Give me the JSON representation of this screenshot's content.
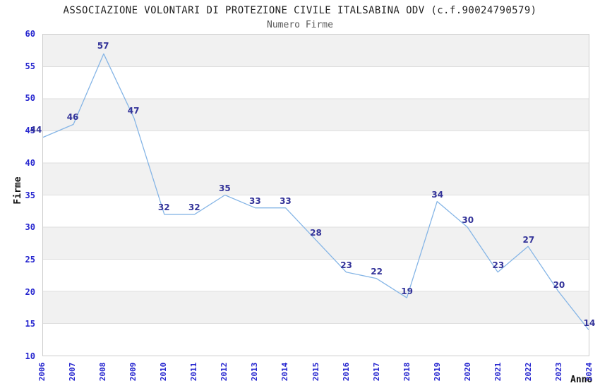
{
  "chart_data": {
    "type": "line",
    "title": "ASSOCIAZIONE VOLONTARI DI PROTEZIONE CIVILE ITALSABINA ODV (c.f.90024790579)",
    "subtitle": "Numero Firme",
    "xlabel": "Anno",
    "ylabel": "Firme",
    "x": [
      2006,
      2007,
      2008,
      2009,
      2010,
      2011,
      2012,
      2013,
      2014,
      2015,
      2016,
      2017,
      2018,
      2019,
      2020,
      2021,
      2022,
      2023,
      2024
    ],
    "values": [
      44,
      46,
      57,
      47,
      32,
      32,
      35,
      33,
      33,
      28,
      23,
      22,
      19,
      34,
      30,
      23,
      27,
      20,
      14
    ],
    "ylim": [
      10,
      60
    ],
    "ytick_step": 5,
    "yticks": [
      60,
      55,
      50,
      45,
      40,
      35,
      30,
      25,
      20,
      15,
      10
    ],
    "grid": "horizontal gridlines with alternating shaded bands",
    "legend": "none",
    "data_labels_visible": true,
    "colors": {
      "line": "#85b5e6",
      "data_label": "#333399",
      "tick_label": "#2525cf",
      "band": "#f1f1f1",
      "grid": "#dedede",
      "plot_border": "#cccccc",
      "title": "#222222",
      "subtitle": "#595959",
      "axis_title": "#111111",
      "background": "#ffffff"
    }
  }
}
